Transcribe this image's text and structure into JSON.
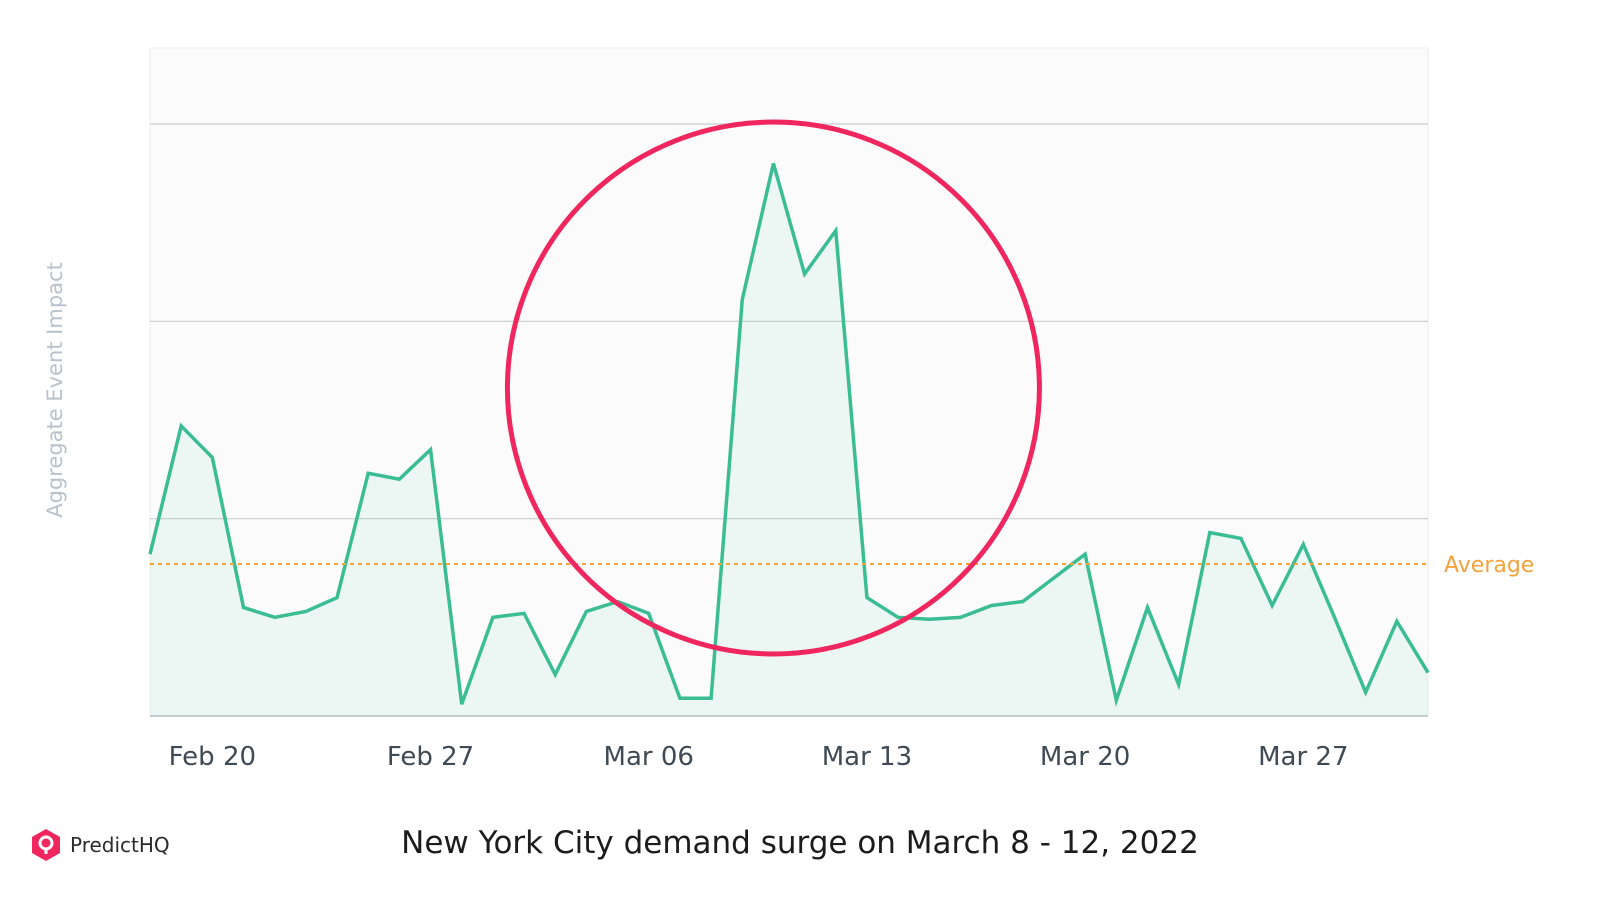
{
  "chart_data": {
    "type": "area",
    "ylabel": "Aggregate Event Impact",
    "x_start": "2022-02-18",
    "x_step_days": 1,
    "x_tick_labels": [
      "Feb 20",
      "Feb 27",
      "Mar 06",
      "Mar 13",
      "Mar 20",
      "Mar 27"
    ],
    "values": [
      8.2,
      14.7,
      13.1,
      5.5,
      5.0,
      5.3,
      6.0,
      12.3,
      12.0,
      13.5,
      0.6,
      5.0,
      5.2,
      2.1,
      5.3,
      5.8,
      5.2,
      0.9,
      0.9,
      21.1,
      28.0,
      22.4,
      24.6,
      6.0,
      5.0,
      4.9,
      5.0,
      5.6,
      5.8,
      7.0,
      8.2,
      0.8,
      5.5,
      1.6,
      9.3,
      9.0,
      5.6,
      8.7,
      5.0,
      1.2,
      4.8,
      2.2
    ],
    "ylim": [
      0,
      30
    ],
    "gridlines": [
      10,
      20,
      30
    ],
    "average": 7.7,
    "average_label": "Average",
    "highlight": {
      "type": "circle",
      "x_range": [
        "2022-03-08",
        "2022-03-12"
      ]
    },
    "colors": {
      "line": "#3bbd94",
      "fill": "#3bbd94",
      "average": "#f5a23c",
      "highlight": "#f0265e",
      "grid": "#c9cdd1",
      "plot_bg": "#fbfbfb"
    }
  },
  "caption": "New York City demand surge on March 8 - 12, 2022",
  "brand": {
    "name": "PredictHQ",
    "icon": "predicthq-logo-icon",
    "color": "#f0265e"
  }
}
